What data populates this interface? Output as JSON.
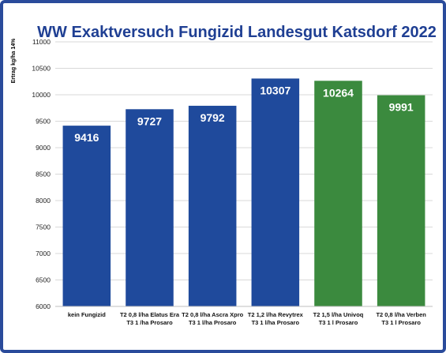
{
  "chart_data": {
    "type": "bar",
    "title": "WW Exaktversuch Fungizid Landesgut Katsdorf 2022",
    "xlabel": "",
    "ylabel": "Ertrag kg/ha 14%",
    "ylim": [
      6000,
      11000
    ],
    "yticks": [
      6000,
      6500,
      7000,
      7500,
      8000,
      8500,
      9000,
      9500,
      10000,
      10500,
      11000
    ],
    "grid": true,
    "categories": [
      [
        "kein Fungizid"
      ],
      [
        "T2 0,8 l/ha Elatus Era",
        "T3 1 /ha Prosaro"
      ],
      [
        "T2 0,8 l/ha Ascra Xpro",
        "T3 1 l/ha Prosaro"
      ],
      [
        "T2 1,2 l/ha Revytrex",
        "T3 1 l/ha Prosaro"
      ],
      [
        "T2 1,5 l/ha Univoq",
        "T3 1 l Prosaro"
      ],
      [
        "T2 0,8 l/ha Verben",
        "T3 1 l Prosaro"
      ]
    ],
    "values": [
      9416,
      9727,
      9792,
      10307,
      10264,
      9991
    ],
    "value_labels": [
      "9416",
      "9727",
      "9792",
      "10307",
      "10264",
      "9991"
    ],
    "bar_colors": [
      "#1f4a9c",
      "#1f4a9c",
      "#1f4a9c",
      "#1f4a9c",
      "#3b8a3e",
      "#3b8a3e"
    ]
  },
  "colors": {
    "frame": "#2a4b9b",
    "title": "#1f3f93",
    "grid": "#d9d9d9"
  }
}
